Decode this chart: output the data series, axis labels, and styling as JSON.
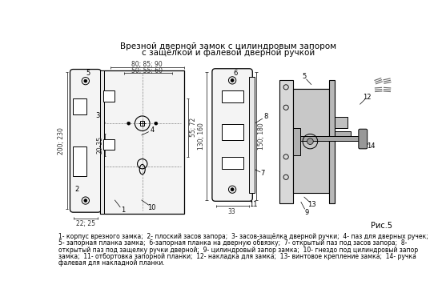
{
  "title_line1": "Врезной дверной замок с цилиндровым запором",
  "title_line2": "с защёлкой и фалевой дверной ручкой",
  "fig_label": "Рис.5",
  "caption_lines": [
    "1- корпус врезного замка;  2- плоский засов запора;  3- засов-защёлка дверной ручки;  4- паз для дверных ручек;",
    "5- запорная планка замка;  6-запорная планка на дверную обвязку;  7- открытый паз под засов запора;  8-",
    "открытый паз под защелку ручки дверной;  9- цилиндровый запор замка;  10- гнездо под цилиндровый запор",
    "замка;  11- отбортовка запорной планки;  12- накладка для замка;  13- винтовое крепление замка;  14- ручка",
    "фалевая для накладной планки."
  ],
  "bg_color": "#ffffff",
  "line_color": "#000000",
  "text_color": "#000000",
  "dim_color": "#333333",
  "gray_fill": "#e8e8e8",
  "light_fill": "#f4f4f4"
}
